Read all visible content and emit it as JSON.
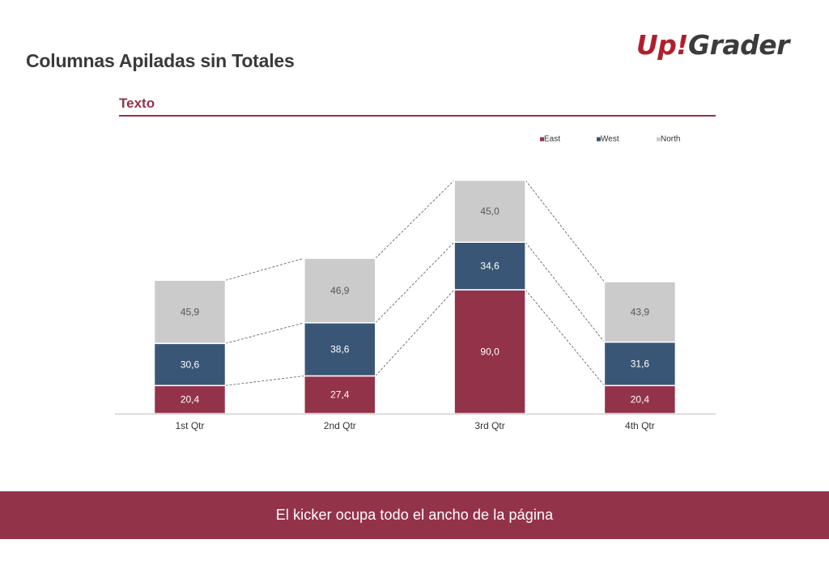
{
  "page": {
    "title": "Columnas Apiladas sin Totales",
    "section_label": "Texto",
    "kicker": "El kicker ocupa todo el ancho de la página"
  },
  "logo": {
    "part1": "Up",
    "part2": "!",
    "part3": "Grader"
  },
  "colors": {
    "accent": "#93334a",
    "logo_red": "#b01f2b",
    "title_text": "#3a3a3a",
    "east": "#93334a",
    "west": "#3a5676",
    "north": "#cbcbcb"
  },
  "chart_data": {
    "type": "bar",
    "stacked": true,
    "categories": [
      "1st Qtr",
      "2nd Qtr",
      "3rd Qtr",
      "4th Qtr"
    ],
    "series": [
      {
        "name": "East",
        "values": [
          20.4,
          27.4,
          90.0,
          20.4
        ],
        "labels": [
          "20,4",
          "27,4",
          "90,0",
          "20,4"
        ]
      },
      {
        "name": "West",
        "values": [
          30.6,
          38.6,
          34.6,
          31.6
        ],
        "labels": [
          "30,6",
          "38,6",
          "34,6",
          "31,6"
        ]
      },
      {
        "name": "North",
        "values": [
          45.9,
          46.9,
          45.0,
          43.9
        ],
        "labels": [
          "45,9",
          "46,9",
          "45,0",
          "43,9"
        ]
      }
    ],
    "ylim": [
      0,
      170
    ],
    "series_lines": true,
    "legend_position": "top-right",
    "grid": false,
    "title": "",
    "xlabel": "",
    "ylabel": ""
  }
}
